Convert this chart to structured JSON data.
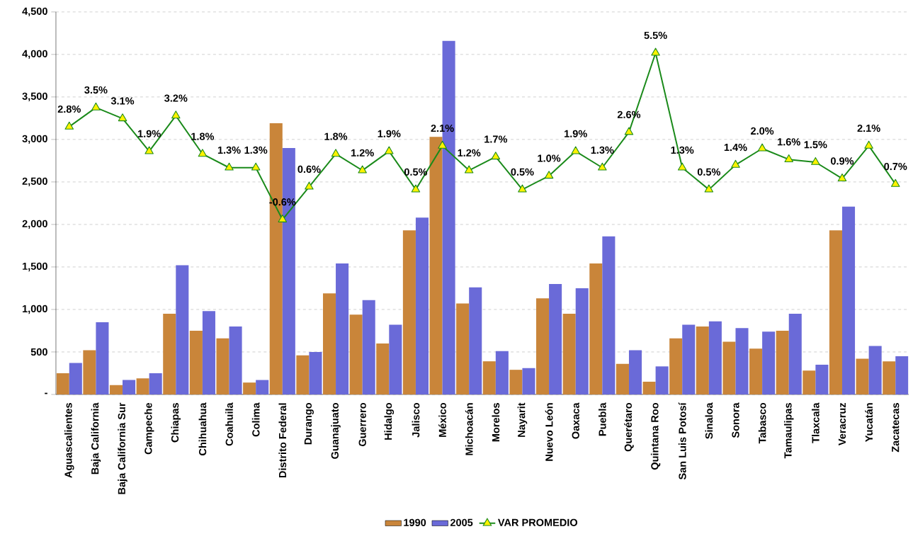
{
  "chart_data": {
    "type": "bar",
    "categories": [
      "Aguascalientes",
      "Baja California",
      "Baja California Sur",
      "Campeche",
      "Chiapas",
      "Chihuahua",
      "Coahuila",
      "Colima",
      "Distrito Federal",
      "Durango",
      "Guanajuato",
      "Guerrero",
      "Hidalgo",
      "Jalisco",
      "México",
      "Michoacán",
      "Morelos",
      "Nayarit",
      "Nuevo León",
      "Oaxaca",
      "Puebla",
      "Querétaro",
      "Quintana Roo",
      "San Luis Potosí",
      "Sinaloa",
      "Sonora",
      "Tabasco",
      "Tamaulipas",
      "Tlaxcala",
      "Veracruz",
      "Yucatán",
      "Zacatecas"
    ],
    "series": [
      {
        "name": "1990",
        "color": "#c9853a",
        "values": [
          250,
          520,
          110,
          190,
          950,
          750,
          660,
          140,
          3190,
          460,
          1190,
          940,
          600,
          1930,
          3030,
          1070,
          390,
          290,
          1130,
          950,
          1540,
          360,
          150,
          660,
          800,
          620,
          540,
          750,
          280,
          1930,
          420,
          390
        ]
      },
      {
        "name": "2005",
        "color": "#6a6ad8",
        "values": [
          370,
          850,
          170,
          250,
          1520,
          980,
          800,
          170,
          2900,
          500,
          1540,
          1110,
          820,
          2080,
          4160,
          1260,
          510,
          310,
          1300,
          1250,
          1860,
          520,
          330,
          820,
          860,
          780,
          740,
          950,
          350,
          2210,
          570,
          450
        ]
      },
      {
        "name": "VAR PROMEDIO",
        "type": "line",
        "axis": "y2",
        "color": "#1a8a1a",
        "marker": "triangle",
        "values": [
          2.8,
          3.5,
          3.1,
          1.9,
          3.2,
          1.8,
          1.3,
          1.3,
          -0.6,
          0.6,
          1.8,
          1.2,
          1.9,
          0.5,
          2.1,
          1.2,
          1.7,
          0.5,
          1.0,
          1.9,
          1.3,
          2.6,
          5.5,
          1.3,
          0.5,
          1.4,
          2.0,
          1.6,
          1.5,
          0.9,
          2.1,
          0.7
        ],
        "value_labels": [
          "2.8%",
          "3.5%",
          "3.1%",
          "1.9%",
          "3.2%",
          "1.8%",
          "1.3%",
          "1.3%",
          "-0.6%",
          "0.6%",
          "1.8%",
          "1.2%",
          "1.9%",
          "0.5%",
          "2.1%",
          "1.2%",
          "1.7%",
          "0.5%",
          "1.0%",
          "1.9%",
          "1.3%",
          "2.6%",
          "5.5%",
          "1.3%",
          "0.5%",
          "1.4%",
          "2.0%",
          "1.6%",
          "1.5%",
          "0.9%",
          "2.1%",
          "0.7%"
        ]
      }
    ],
    "ylim": [
      0,
      4500
    ],
    "yticks": [
      {
        "value": 0,
        "label": "-"
      },
      500,
      {
        "value": 1000,
        "label": "1,000"
      },
      {
        "value": 1500,
        "label": "1,500"
      },
      {
        "value": 2000,
        "label": "2,000"
      },
      {
        "value": 2500,
        "label": "2,500"
      },
      {
        "value": 3000,
        "label": "3,000"
      },
      {
        "value": 3500,
        "label": "3,500"
      },
      {
        "value": 4000,
        "label": "4,000"
      },
      {
        "value": 4500,
        "label": "4,500"
      }
    ],
    "y2lim": [
      -7,
      7
    ],
    "tick_labels": "xy",
    "grid": "y",
    "legend": "bottom"
  }
}
